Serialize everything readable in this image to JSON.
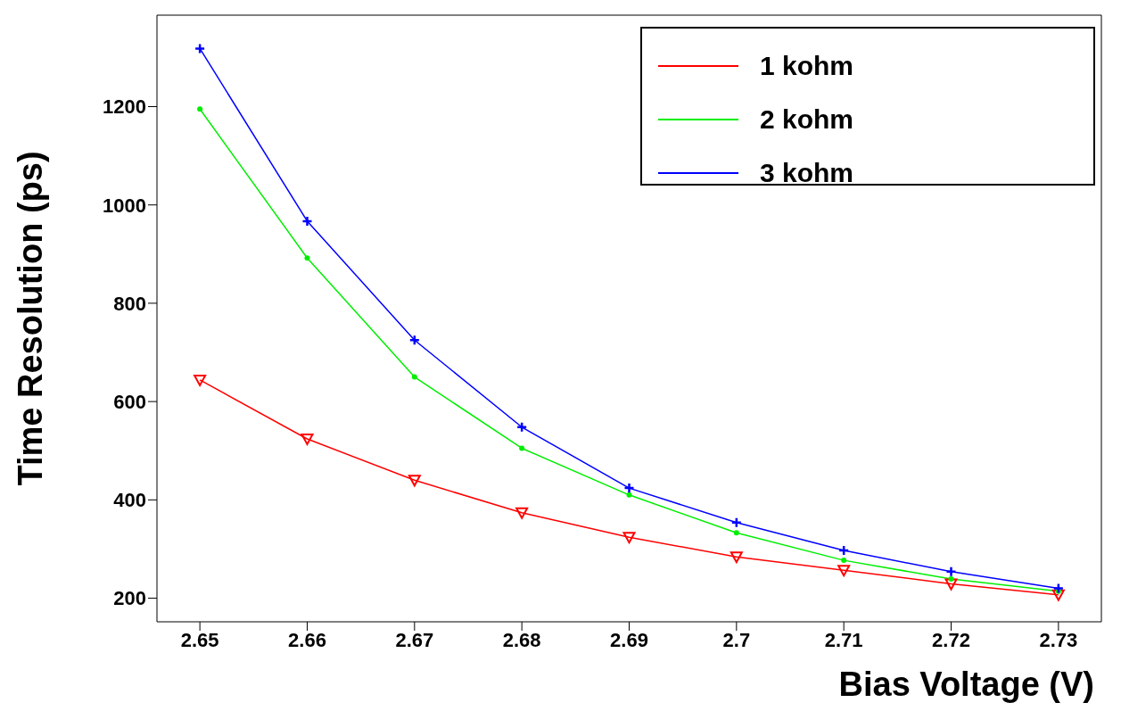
{
  "chart_data": {
    "type": "line",
    "xlabel": "Bias Voltage (V)",
    "ylabel": "Time Resolution (ps)",
    "x": [
      2.65,
      2.66,
      2.67,
      2.68,
      2.69,
      2.7,
      2.71,
      2.72,
      2.73
    ],
    "series": [
      {
        "name": "1 kohm",
        "color": "#ff0000",
        "marker": "triangle",
        "values": [
          644,
          524,
          440,
          374,
          324,
          284,
          257,
          229,
          207
        ]
      },
      {
        "name": "2 kohm",
        "color": "#00ee00",
        "marker": "circle",
        "values": [
          1195,
          892,
          650,
          505,
          410,
          333,
          277,
          239,
          214
        ]
      },
      {
        "name": "3 kohm",
        "color": "#0000ff",
        "marker": "cross",
        "values": [
          1318,
          967,
          725,
          548,
          424,
          354,
          297,
          254,
          220
        ]
      }
    ],
    "xlim": [
      2.646,
      2.734
    ],
    "ylim": [
      152,
      1386
    ],
    "xticks": [
      2.65,
      2.66,
      2.67,
      2.68,
      2.69,
      2.7,
      2.71,
      2.72,
      2.73
    ],
    "yticks": [
      200,
      400,
      600,
      800,
      1000,
      1200
    ],
    "legend": "top right"
  }
}
